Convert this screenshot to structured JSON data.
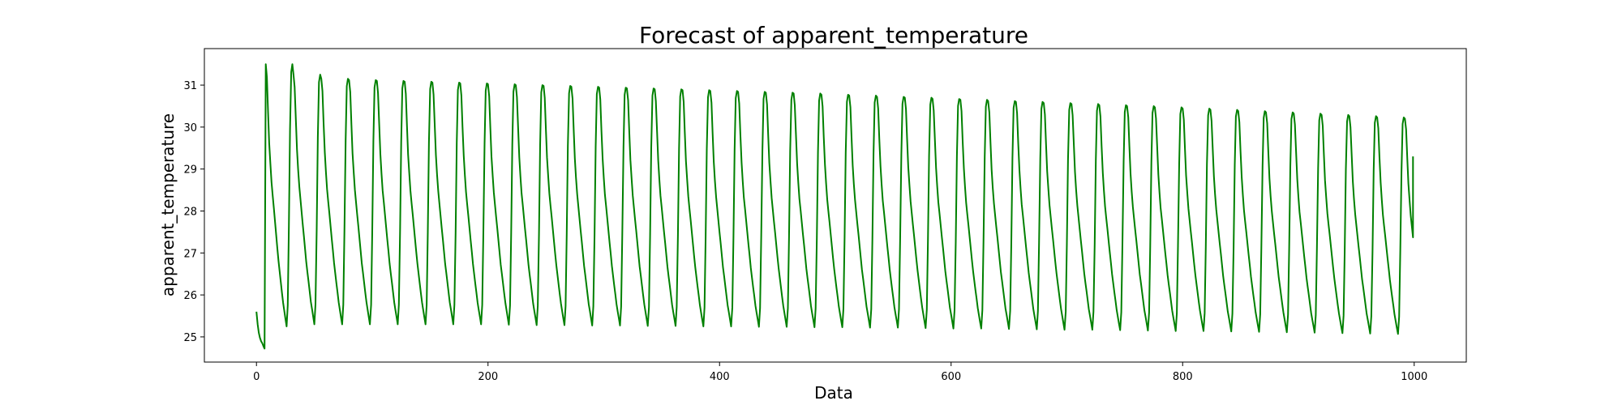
{
  "chart_data": {
    "type": "line",
    "title": "Forecast of apparent_temperature",
    "xlabel": "Data",
    "ylabel": "apparent_temperature",
    "xlim": [
      -45,
      1045
    ],
    "ylim": [
      24.4,
      31.87
    ],
    "xticks": [
      0,
      200,
      400,
      600,
      800,
      1000
    ],
    "yticks": [
      25,
      26,
      27,
      28,
      29,
      30,
      31
    ],
    "grid": false,
    "legend": "none",
    "series": [
      {
        "color": "#008000",
        "x_start": 0,
        "x_end": 999,
        "period": 24,
        "cycle_shape": [
          1.0,
          0.95,
          0.82,
          0.7,
          0.62,
          0.55,
          0.5,
          0.45,
          0.4,
          0.35,
          0.3,
          0.25,
          0.21,
          0.17,
          0.13,
          0.09,
          0.06,
          0.03,
          0.0,
          0.08,
          0.38,
          0.75,
          0.97,
          1.0
        ],
        "cycle_peaks": [
          31.5,
          31.25,
          31.15,
          31.12,
          31.1,
          31.08,
          31.06,
          31.04,
          31.02,
          31.0,
          30.98,
          30.96,
          30.94,
          30.92,
          30.9,
          30.88,
          30.86,
          30.84,
          30.82,
          30.8,
          30.77,
          30.75,
          30.72,
          30.7,
          30.67,
          30.65,
          30.62,
          30.6,
          30.57,
          30.55,
          30.52,
          30.5,
          30.47,
          30.44,
          30.41,
          30.38,
          30.35,
          30.32,
          30.29,
          30.26,
          30.23,
          30.2,
          30.17,
          30.1
        ],
        "cycle_troughs": [
          24.72,
          25.25,
          25.3,
          25.3,
          25.3,
          25.3,
          25.3,
          25.3,
          25.3,
          25.29,
          25.28,
          25.28,
          25.27,
          25.27,
          25.26,
          25.26,
          25.25,
          25.25,
          25.24,
          25.24,
          25.23,
          25.23,
          25.22,
          25.22,
          25.21,
          25.2,
          25.2,
          25.19,
          25.18,
          25.17,
          25.17,
          25.16,
          25.15,
          25.14,
          25.14,
          25.13,
          25.12,
          25.11,
          25.1,
          25.09,
          25.08,
          25.07,
          25.06,
          25.05
        ],
        "start_values": [
          25.6,
          25.3,
          25.1,
          24.98,
          24.9,
          24.85,
          24.78,
          24.72
        ],
        "end_value": 29.3
      }
    ]
  }
}
